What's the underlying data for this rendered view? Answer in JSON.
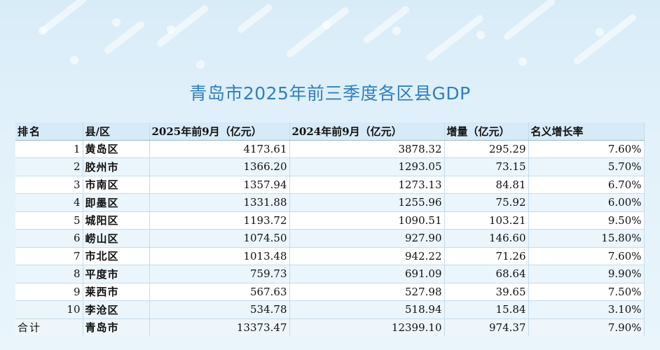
{
  "title": "青岛市2025年前三季度各区县GDP",
  "header": {
    "rank": "排名",
    "district": "县/区",
    "gdp2025": "2025年前9月（亿元）",
    "gdp2024": "2024年前9月（亿元）",
    "increase": "增量（亿元）",
    "growth": "名义增长率"
  },
  "rows": [
    {
      "rank": "1",
      "district": "黄岛区",
      "gdp2025": "4173.61",
      "gdp2024": "3878.32",
      "increase": "295.29",
      "growth": "7.60%"
    },
    {
      "rank": "2",
      "district": "胶州市",
      "gdp2025": "1366.20",
      "gdp2024": "1293.05",
      "increase": "73.15",
      "growth": "5.70%"
    },
    {
      "rank": "3",
      "district": "市南区",
      "gdp2025": "1357.94",
      "gdp2024": "1273.13",
      "increase": "84.81",
      "growth": "6.70%"
    },
    {
      "rank": "4",
      "district": "即墨区",
      "gdp2025": "1331.88",
      "gdp2024": "1255.96",
      "increase": "75.92",
      "growth": "6.00%"
    },
    {
      "rank": "5",
      "district": "城阳区",
      "gdp2025": "1193.72",
      "gdp2024": "1090.51",
      "increase": "103.21",
      "growth": "9.50%"
    },
    {
      "rank": "6",
      "district": "崂山区",
      "gdp2025": "1074.50",
      "gdp2024": "927.90",
      "increase": "146.60",
      "growth": "15.80%"
    },
    {
      "rank": "7",
      "district": "市北区",
      "gdp2025": "1013.48",
      "gdp2024": "942.22",
      "increase": "71.26",
      "growth": "7.60%"
    },
    {
      "rank": "8",
      "district": "平度市",
      "gdp2025": "759.73",
      "gdp2024": "691.09",
      "increase": "68.64",
      "growth": "9.90%"
    },
    {
      "rank": "9",
      "district": "莱西市",
      "gdp2025": "567.63",
      "gdp2024": "527.98",
      "increase": "39.65",
      "growth": "7.50%"
    },
    {
      "rank": "10",
      "district": "李沧区",
      "gdp2025": "534.78",
      "gdp2024": "518.94",
      "increase": "15.84",
      "growth": "3.10%"
    }
  ],
  "total": {
    "rank": "合计",
    "district": "青岛市",
    "gdp2025": "13373.47",
    "gdp2024": "12399.10",
    "increase": "974.37",
    "growth": "7.90%"
  },
  "colors": {
    "title": "#2f7fc1",
    "header_bg": "#d6eaf7",
    "row_alt_bg": "#eaf5fc",
    "background": "#e2f1fa"
  },
  "chart_data": {
    "type": "table",
    "title": "青岛市2025年前三季度各区县GDP",
    "columns": [
      "排名",
      "县/区",
      "2025年前9月（亿元）",
      "2024年前9月（亿元）",
      "增量（亿元）",
      "名义增长率"
    ],
    "rows": [
      [
        "1",
        "黄岛区",
        4173.61,
        3878.32,
        295.29,
        "7.60%"
      ],
      [
        "2",
        "胶州市",
        1366.2,
        1293.05,
        73.15,
        "5.70%"
      ],
      [
        "3",
        "市南区",
        1357.94,
        1273.13,
        84.81,
        "6.70%"
      ],
      [
        "4",
        "即墨区",
        1331.88,
        1255.96,
        75.92,
        "6.00%"
      ],
      [
        "5",
        "城阳区",
        1193.72,
        1090.51,
        103.21,
        "9.50%"
      ],
      [
        "6",
        "崂山区",
        1074.5,
        927.9,
        146.6,
        "15.80%"
      ],
      [
        "7",
        "市北区",
        1013.48,
        942.22,
        71.26,
        "7.60%"
      ],
      [
        "8",
        "平度市",
        759.73,
        691.09,
        68.64,
        "9.90%"
      ],
      [
        "9",
        "莱西市",
        567.63,
        527.98,
        39.65,
        "7.50%"
      ],
      [
        "10",
        "李沧区",
        534.78,
        518.94,
        15.84,
        "3.10%"
      ],
      [
        "合计",
        "青岛市",
        13373.47,
        12399.1,
        974.37,
        "7.90%"
      ]
    ]
  }
}
